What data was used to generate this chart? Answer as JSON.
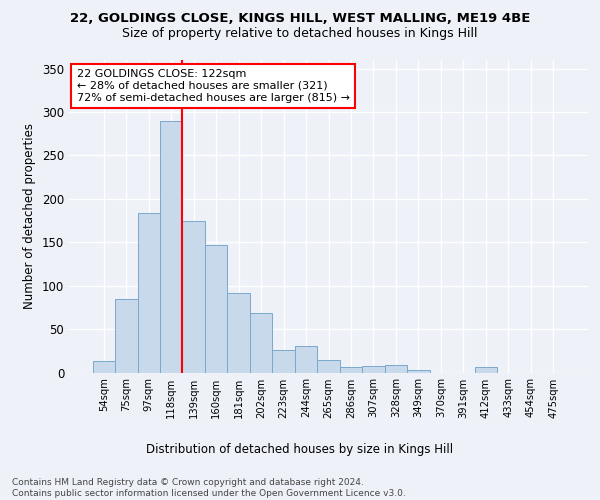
{
  "title1": "22, GOLDINGS CLOSE, KINGS HILL, WEST MALLING, ME19 4BE",
  "title2": "Size of property relative to detached houses in Kings Hill",
  "xlabel": "Distribution of detached houses by size in Kings Hill",
  "ylabel": "Number of detached properties",
  "categories": [
    "54sqm",
    "75sqm",
    "97sqm",
    "118sqm",
    "139sqm",
    "160sqm",
    "181sqm",
    "202sqm",
    "223sqm",
    "244sqm",
    "265sqm",
    "286sqm",
    "307sqm",
    "328sqm",
    "349sqm",
    "370sqm",
    "391sqm",
    "412sqm",
    "433sqm",
    "454sqm",
    "475sqm"
  ],
  "values": [
    13,
    85,
    184,
    290,
    175,
    147,
    92,
    68,
    26,
    30,
    14,
    6,
    7,
    9,
    3,
    0,
    0,
    6,
    0,
    0,
    0
  ],
  "bar_color": "#c9d9ec",
  "bar_edge_color": "#7aa8cc",
  "red_line_index": 3,
  "annotation_text": "22 GOLDINGS CLOSE: 122sqm\n← 28% of detached houses are smaller (321)\n72% of semi-detached houses are larger (815) →",
  "ylim": [
    0,
    360
  ],
  "yticks": [
    0,
    50,
    100,
    150,
    200,
    250,
    300,
    350
  ],
  "footer_text": "Contains HM Land Registry data © Crown copyright and database right 2024.\nContains public sector information licensed under the Open Government Licence v3.0.",
  "background_color": "#eef2f8",
  "grid_color": "#ffffff"
}
